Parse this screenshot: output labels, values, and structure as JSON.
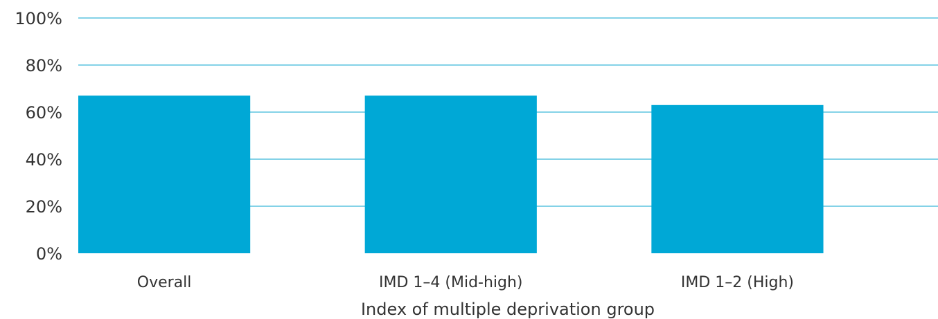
{
  "chart_data": {
    "type": "bar",
    "categories": [
      "Overall",
      "IMD 1–4 (Mid-high)",
      "IMD 1–2 (High)"
    ],
    "values": [
      67,
      67,
      63
    ],
    "xlabel": "Index of multiple deprivation group",
    "ylabel": "",
    "ylim": [
      0,
      100
    ],
    "yticks": [
      0,
      20,
      40,
      60,
      80,
      100
    ],
    "ytick_labels": [
      "0%",
      "20%",
      "40%",
      "60%",
      "80%",
      "100%"
    ],
    "grid": true,
    "legend": "none",
    "colors": {
      "bar": "#00A8D6",
      "grid": "#5BC3DF"
    }
  }
}
